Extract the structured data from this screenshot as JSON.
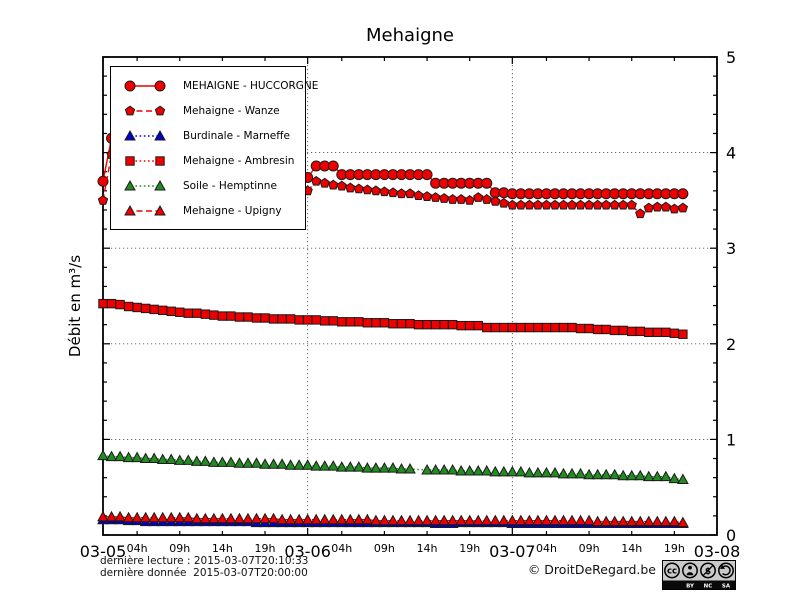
{
  "title": "Mehaigne",
  "ylabel": "Débit en m³/s",
  "footer": {
    "last_read": "dernière lecture : 2015-03-07T20:10:33",
    "last_data": "dernière donnée  2015-03-07T20:00:00",
    "copyright": "© DroitDeRegard.be",
    "license": {
      "name": "cc-by-nc-sa-badge",
      "labels": [
        "BY",
        "NC",
        "SA"
      ]
    }
  },
  "chart_data": {
    "type": "line",
    "title": "Mehaigne",
    "ylabel": "Débit en m³/s",
    "ylim": [
      0,
      5
    ],
    "yticks": [
      0,
      1,
      2,
      3,
      4,
      5
    ],
    "y_minor_step": 0.2,
    "grid": true,
    "legend_position": "upper-left",
    "x_unit": "hours since 2015-03-05 00:00",
    "x_hours_total": 72,
    "x_step_hours": 1,
    "x_range_days": [
      "03-05",
      "03-06",
      "03-07",
      "03-08"
    ],
    "day_tick_hours": [
      0,
      24,
      48,
      72
    ],
    "hour_tick_labels": [
      "04h",
      "09h",
      "14h",
      "19h"
    ],
    "hour_tick_values": [
      4,
      9,
      14,
      19
    ],
    "series": [
      {
        "id": "huccorgne",
        "name": "MEHAIGNE - HUCCORGNE",
        "color": "#ee0000",
        "marker": "circle",
        "line": "solid",
        "values": [
          3.7,
          4.15,
          4.12,
          4.05,
          4.0,
          3.97,
          3.95,
          3.93,
          3.91,
          3.9,
          3.88,
          3.87,
          3.86,
          3.85,
          3.84,
          3.83,
          3.82,
          3.81,
          3.8,
          3.79,
          3.78,
          3.77,
          3.76,
          3.75,
          3.74,
          3.86,
          3.86,
          3.86,
          3.77,
          3.77,
          3.77,
          3.77,
          3.77,
          3.77,
          3.77,
          3.77,
          3.77,
          3.77,
          3.77,
          3.68,
          3.68,
          3.68,
          3.68,
          3.68,
          3.68,
          3.68,
          3.58,
          3.58,
          3.57,
          3.57,
          3.57,
          3.57,
          3.57,
          3.57,
          3.57,
          3.57,
          3.57,
          3.57,
          3.57,
          3.57,
          3.57,
          3.57,
          3.57,
          3.57,
          3.57,
          3.57,
          3.57,
          3.57,
          3.57
        ]
      },
      {
        "id": "wanze",
        "name": "Mehaigne - Wanze",
        "color": "#ee0000",
        "marker": "pentagon",
        "line": "dashed",
        "values": [
          3.5,
          3.98,
          3.95,
          3.9,
          3.87,
          3.85,
          3.83,
          3.81,
          3.8,
          3.79,
          3.78,
          3.77,
          3.76,
          3.75,
          3.74,
          3.73,
          3.72,
          3.71,
          3.7,
          3.69,
          3.68,
          3.66,
          3.64,
          3.62,
          3.6,
          3.7,
          3.68,
          3.66,
          3.65,
          3.63,
          3.62,
          3.61,
          3.6,
          3.59,
          3.58,
          3.57,
          3.57,
          3.55,
          3.54,
          3.53,
          3.52,
          3.51,
          3.51,
          3.5,
          3.53,
          3.51,
          3.49,
          3.47,
          3.45,
          3.45,
          3.45,
          3.45,
          3.45,
          3.45,
          3.45,
          3.45,
          3.45,
          3.45,
          3.45,
          3.45,
          3.45,
          3.45,
          3.45,
          3.36,
          3.42,
          3.43,
          3.43,
          3.41,
          3.42
        ]
      },
      {
        "id": "marneffe",
        "name": "Burdinale - Marneffe",
        "color": "#0000cc",
        "marker": "triangle",
        "line": "dotted",
        "values": [
          0.16,
          0.16,
          0.16,
          0.15,
          0.15,
          0.14,
          0.14,
          0.14,
          0.14,
          0.14,
          0.14,
          0.14,
          0.14,
          0.14,
          0.14,
          0.14,
          0.14,
          0.14,
          0.13,
          0.13,
          0.13,
          0.13,
          0.13,
          0.13,
          0.13,
          0.13,
          0.13,
          0.13,
          0.13,
          0.13,
          0.13,
          0.13,
          0.13,
          0.13,
          0.13,
          0.13,
          0.13,
          0.13,
          0.13,
          0.12,
          0.12,
          0.12,
          0.13,
          0.13,
          0.13,
          0.13,
          0.13,
          0.13,
          0.12,
          0.12,
          0.12,
          0.12,
          0.12,
          0.12,
          0.12,
          0.12,
          0.12,
          0.12,
          0.12,
          0.12,
          0.12,
          0.12,
          0.12,
          0.12,
          0.12,
          0.12,
          0.12,
          0.12,
          0.12
        ]
      },
      {
        "id": "ambresin",
        "name": "Mehaigne - Ambresin",
        "color": "#ee0000",
        "marker": "square",
        "line": "dotted",
        "values": [
          2.42,
          2.42,
          2.41,
          2.39,
          2.38,
          2.37,
          2.36,
          2.35,
          2.34,
          2.33,
          2.32,
          2.32,
          2.31,
          2.3,
          2.29,
          2.29,
          2.28,
          2.28,
          2.27,
          2.27,
          2.26,
          2.26,
          2.26,
          2.25,
          2.25,
          2.25,
          2.24,
          2.24,
          2.23,
          2.23,
          2.23,
          2.22,
          2.22,
          2.22,
          2.21,
          2.21,
          2.21,
          2.2,
          2.2,
          2.2,
          2.2,
          2.2,
          2.19,
          2.19,
          2.19,
          2.17,
          2.17,
          2.17,
          2.17,
          2.17,
          2.17,
          2.17,
          2.17,
          2.17,
          2.17,
          2.17,
          2.16,
          2.16,
          2.15,
          2.15,
          2.14,
          2.14,
          2.13,
          2.13,
          2.12,
          2.12,
          2.12,
          2.11,
          2.1
        ]
      },
      {
        "id": "hemptinne",
        "name": "Soile - Hemptinne",
        "color": "#228b22",
        "marker": "triangle",
        "line": "dotted",
        "values": [
          0.83,
          0.82,
          0.82,
          0.81,
          0.81,
          0.8,
          0.8,
          0.79,
          0.79,
          0.78,
          0.78,
          0.77,
          0.77,
          0.76,
          0.76,
          0.76,
          0.75,
          0.75,
          0.75,
          0.74,
          0.74,
          0.74,
          0.73,
          0.73,
          0.73,
          0.72,
          0.72,
          0.72,
          0.71,
          0.71,
          0.71,
          0.7,
          0.7,
          0.7,
          0.7,
          0.69,
          0.69,
          null,
          0.68,
          0.68,
          0.68,
          0.68,
          0.67,
          0.67,
          0.67,
          0.67,
          0.66,
          0.66,
          0.66,
          0.66,
          0.65,
          0.65,
          0.65,
          0.65,
          0.64,
          0.64,
          0.64,
          0.63,
          0.63,
          0.63,
          0.63,
          0.62,
          0.62,
          0.62,
          0.61,
          0.61,
          0.61,
          0.59,
          0.58
        ]
      },
      {
        "id": "upigny",
        "name": "Mehaigne - Upigny",
        "color": "#ee0000",
        "marker": "triangle",
        "line": "dashed",
        "values": [
          0.19,
          0.19,
          0.19,
          0.18,
          0.18,
          0.18,
          0.18,
          0.18,
          0.18,
          0.18,
          0.18,
          0.17,
          0.17,
          0.17,
          0.17,
          0.17,
          0.17,
          0.17,
          0.17,
          0.17,
          0.17,
          0.16,
          0.16,
          0.16,
          0.16,
          0.16,
          0.16,
          0.16,
          0.16,
          0.16,
          0.16,
          0.16,
          0.15,
          0.15,
          0.15,
          0.15,
          0.15,
          0.15,
          0.15,
          0.15,
          0.15,
          0.15,
          0.15,
          0.15,
          0.15,
          0.15,
          0.15,
          0.15,
          0.15,
          0.15,
          0.15,
          0.15,
          0.15,
          0.15,
          0.15,
          0.15,
          0.15,
          0.15,
          0.14,
          0.14,
          0.14,
          0.14,
          0.14,
          0.14,
          0.14,
          0.14,
          0.14,
          0.14,
          0.13
        ]
      }
    ]
  }
}
